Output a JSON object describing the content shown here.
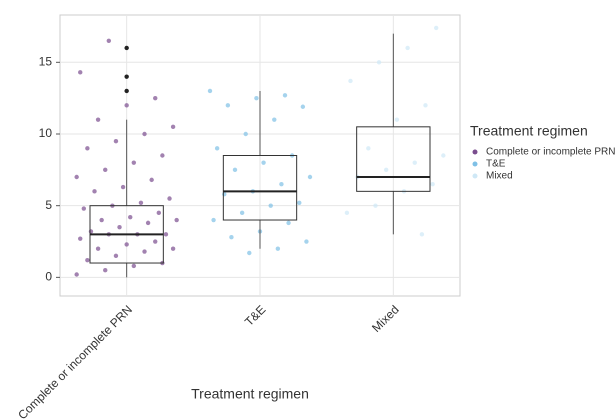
{
  "chart_data": {
    "type": "box",
    "x_label": "Treatment regimen",
    "legend_title": "Treatment regimen",
    "categories": [
      "Complete or incomplete PRN",
      "T&E",
      "Mixed"
    ],
    "ylim": [
      -1.3,
      18.3
    ],
    "yticks": [
      0,
      5,
      10,
      15
    ],
    "grid": true,
    "boxes": [
      {
        "min": 0,
        "q1": 1,
        "median": 3,
        "q3": 5,
        "max": 11,
        "outliers": [
          13,
          14,
          16
        ]
      },
      {
        "min": 2,
        "q1": 4,
        "median": 6,
        "q3": 8.5,
        "max": 13,
        "outliers": []
      },
      {
        "min": 3,
        "q1": 6,
        "median": 7,
        "q3": 10.5,
        "max": 17,
        "outliers": []
      }
    ],
    "series": [
      {
        "name": "Complete or incomplete PRN",
        "color": "#7a4d8e",
        "values": [
          0.2,
          0.5,
          0.8,
          1,
          1.2,
          1.5,
          1.8,
          2,
          2,
          2.3,
          2.5,
          2.7,
          3,
          3,
          3,
          3.2,
          3.5,
          3.8,
          4,
          4,
          4.2,
          4.5,
          4.8,
          5,
          5.2,
          5.5,
          6,
          6.3,
          6.8,
          7,
          7.5,
          8,
          8.5,
          9,
          9.5,
          10,
          10.5,
          11,
          12,
          12.5,
          14.3,
          16.5
        ]
      },
      {
        "name": "T&E",
        "color": "#7fc0e6",
        "values": [
          1.7,
          2,
          2.5,
          2.8,
          3.2,
          3.8,
          4,
          4.5,
          5,
          5.2,
          5.8,
          6,
          6.5,
          7,
          7.5,
          8,
          8.5,
          9,
          10,
          11,
          11.9,
          12,
          12.5,
          12.7,
          13
        ]
      },
      {
        "name": "Mixed",
        "color": "#cfe8f6",
        "values": [
          3,
          4.5,
          5,
          6,
          6.5,
          7,
          7.5,
          8,
          8.5,
          9,
          11,
          12,
          13.7,
          15,
          16,
          17.4
        ]
      }
    ]
  }
}
